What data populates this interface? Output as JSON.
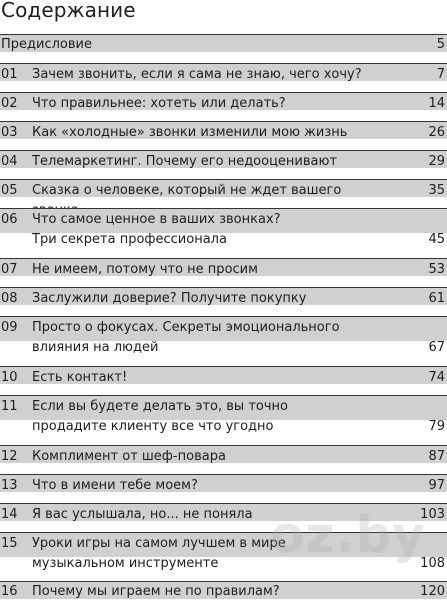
{
  "page_title": "Содержание",
  "watermark": "oz.by",
  "rows": [
    {
      "num": "",
      "title": "Предисловие",
      "page": "5"
    },
    {
      "num": "01",
      "title": "Зачем звонить, если я сама не знаю, чего хочу?",
      "page": "7"
    },
    {
      "num": "02",
      "title": "Что правильнее: хотеть или делать?",
      "page": "14"
    },
    {
      "num": "03",
      "title": "Как «холодные» звонки изменили мою жизнь",
      "page": "26"
    },
    {
      "num": "04",
      "title": "Телемаркетинг. Почему его недооценивают",
      "page": "29"
    },
    {
      "num": "05",
      "title": "Сказка о человеке, который не ждет вашего звонка",
      "page": "35"
    },
    {
      "num": "06",
      "title_lines": [
        "Что самое ценное в ваших звонках?",
        "Три секрета профессионала"
      ],
      "page": "45"
    },
    {
      "num": "07",
      "title": "Не имеем, потому что не просим",
      "page": "53"
    },
    {
      "num": "08",
      "title": "Заслужили доверие? Получите покупку",
      "page": "61"
    },
    {
      "num": "09",
      "title_lines": [
        "Просто о фокусах. Секреты эмоционального",
        "влияния на людей"
      ],
      "page": "67"
    },
    {
      "num": "10",
      "title": "Есть контакт!",
      "page": "74"
    },
    {
      "num": "11",
      "title_lines": [
        "Если вы будете делать это, вы точно",
        "продадите клиенту все что угодно"
      ],
      "page": "79"
    },
    {
      "num": "12",
      "title": "Комплимент от шеф-повара",
      "page": "87"
    },
    {
      "num": "13",
      "title": "Что в имени тебе моем?",
      "page": "97"
    },
    {
      "num": "14",
      "title": "Я вас услышала, но... не поняла",
      "page": "103"
    },
    {
      "num": "15",
      "title_lines": [
        "Уроки игры на самом лучшем в мире",
        "музыкальном инструменте"
      ],
      "page": "108"
    },
    {
      "num": "16",
      "title": "Почему мы играем не по правилам?",
      "page": "120"
    }
  ]
}
